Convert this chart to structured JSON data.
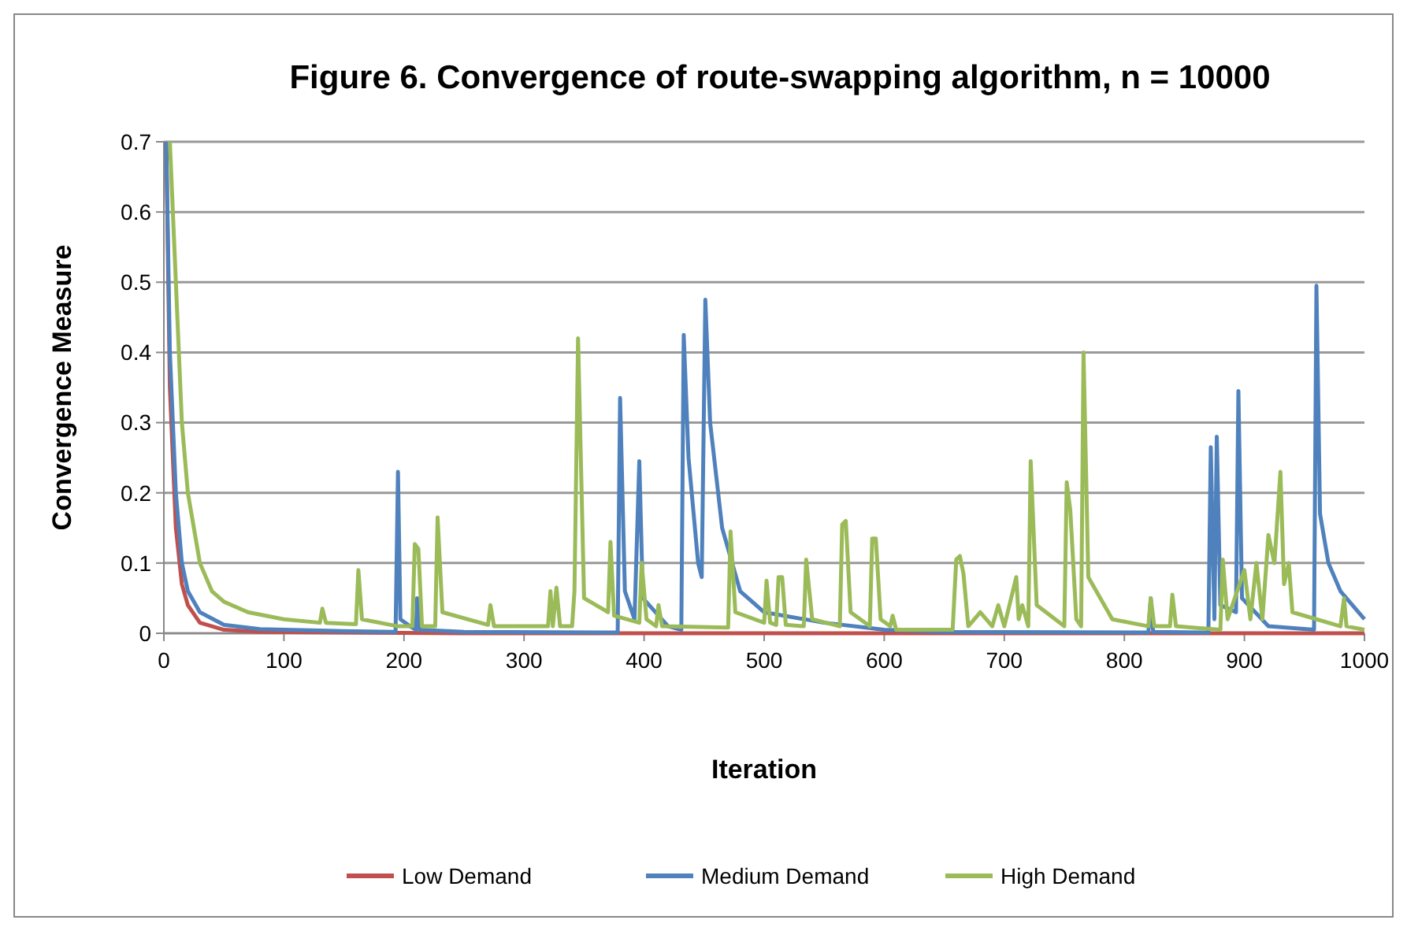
{
  "chart_data": {
    "type": "line",
    "title": "Figure 6. Convergence of route-swapping algorithm, n = 10000",
    "xlabel": "Iteration",
    "ylabel": "Convergence Measure",
    "xlim": [
      0,
      1000
    ],
    "xticks": [
      0,
      100,
      200,
      300,
      400,
      500,
      600,
      700,
      800,
      900,
      1000
    ],
    "ylim": [
      0,
      0.7
    ],
    "yticks": [
      0,
      0.1,
      0.2,
      0.3,
      0.4,
      0.5,
      0.6,
      0.7
    ],
    "grid": "y",
    "legend": "bottom",
    "marker": "none",
    "line_style": "solid",
    "series": [
      {
        "name": "Low Demand",
        "color": "#c0504d",
        "x": [
          2,
          5,
          10,
          15,
          20,
          30,
          50,
          80,
          150,
          250,
          1000
        ],
        "values": [
          0.7,
          0.35,
          0.15,
          0.07,
          0.04,
          0.015,
          0.005,
          0.002,
          0.001,
          0,
          0
        ]
      },
      {
        "name": "Medium Demand",
        "color": "#4f81bd",
        "x": [
          2,
          5,
          10,
          15,
          20,
          30,
          50,
          80,
          150,
          193,
          195,
          197,
          205,
          210,
          211,
          213,
          250,
          378,
          380,
          384,
          392,
          396,
          399,
          420,
          431,
          433,
          437,
          445,
          448,
          451,
          455,
          465,
          480,
          500,
          550,
          600,
          650,
          820,
          822,
          824,
          870,
          872,
          875,
          877,
          880,
          893,
          895,
          898,
          920,
          958,
          960,
          963,
          970,
          980,
          1000
        ],
        "values": [
          0.7,
          0.4,
          0.2,
          0.1,
          0.06,
          0.03,
          0.012,
          0.006,
          0.003,
          0.002,
          0.23,
          0.02,
          0.01,
          0.005,
          0.05,
          0.005,
          0.002,
          0.001,
          0.335,
          0.06,
          0.02,
          0.245,
          0.05,
          0.01,
          0.005,
          0.425,
          0.25,
          0.1,
          0.08,
          0.475,
          0.3,
          0.15,
          0.06,
          0.03,
          0.015,
          0.005,
          0.002,
          0.001,
          0.05,
          0.002,
          0.001,
          0.265,
          0.02,
          0.28,
          0.04,
          0.03,
          0.345,
          0.05,
          0.01,
          0.005,
          0.495,
          0.17,
          0.1,
          0.06,
          0.02
        ]
      },
      {
        "name": "High Demand",
        "color": "#9bbb59",
        "x": [
          5,
          10,
          15,
          20,
          30,
          40,
          50,
          70,
          100,
          130,
          132,
          135,
          160,
          162,
          165,
          195,
          207,
          209,
          212,
          215,
          226,
          228,
          232,
          270,
          272,
          275,
          320,
          322,
          324,
          327,
          330,
          340,
          342,
          345,
          350,
          370,
          372,
          375,
          396,
          398,
          402,
          410,
          412,
          415,
          470,
          472,
          476,
          500,
          502,
          505,
          510,
          512,
          515,
          518,
          533,
          535,
          540,
          563,
          565,
          568,
          572,
          588,
          590,
          593,
          597,
          605,
          607,
          610,
          657,
          660,
          663,
          666,
          670,
          680,
          690,
          695,
          700,
          710,
          712,
          715,
          720,
          722,
          727,
          750,
          752,
          755,
          760,
          764,
          766,
          770,
          790,
          820,
          822,
          825,
          838,
          840,
          843,
          880,
          882,
          886,
          900,
          905,
          910,
          915,
          920,
          925,
          930,
          933,
          937,
          940,
          980,
          983,
          985,
          1000
        ],
        "values": [
          0.7,
          0.5,
          0.3,
          0.2,
          0.1,
          0.06,
          0.045,
          0.03,
          0.02,
          0.015,
          0.035,
          0.015,
          0.013,
          0.09,
          0.02,
          0.01,
          0.01,
          0.127,
          0.12,
          0.01,
          0.01,
          0.165,
          0.03,
          0.012,
          0.04,
          0.01,
          0.01,
          0.06,
          0.01,
          0.065,
          0.01,
          0.01,
          0.06,
          0.42,
          0.05,
          0.03,
          0.13,
          0.025,
          0.015,
          0.1,
          0.02,
          0.01,
          0.04,
          0.01,
          0.008,
          0.145,
          0.03,
          0.015,
          0.075,
          0.015,
          0.012,
          0.08,
          0.08,
          0.012,
          0.01,
          0.105,
          0.02,
          0.01,
          0.155,
          0.16,
          0.03,
          0.01,
          0.135,
          0.135,
          0.02,
          0.01,
          0.025,
          0.005,
          0.005,
          0.105,
          0.11,
          0.085,
          0.01,
          0.03,
          0.01,
          0.04,
          0.01,
          0.08,
          0.02,
          0.04,
          0.01,
          0.245,
          0.04,
          0.01,
          0.215,
          0.175,
          0.02,
          0.01,
          0.4,
          0.08,
          0.02,
          0.01,
          0.05,
          0.01,
          0.01,
          0.055,
          0.01,
          0.005,
          0.105,
          0.02,
          0.09,
          0.02,
          0.1,
          0.02,
          0.14,
          0.1,
          0.23,
          0.07,
          0.1,
          0.03,
          0.01,
          0.05,
          0.01,
          0.005
        ]
      }
    ]
  }
}
